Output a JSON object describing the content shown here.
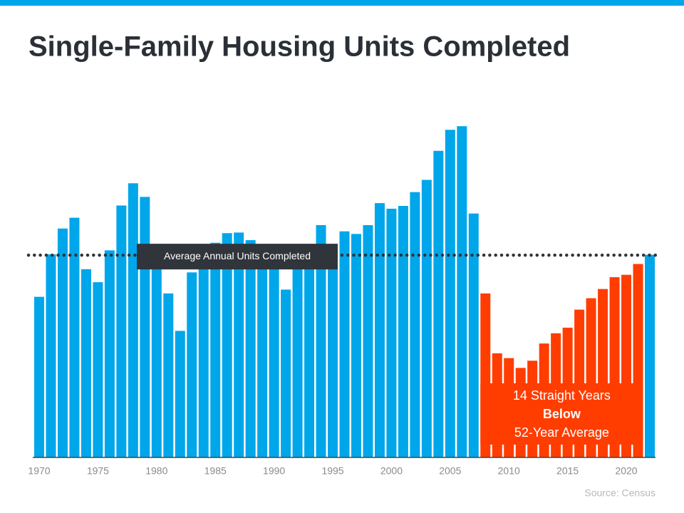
{
  "chart_data": {
    "type": "bar",
    "title": "Single-Family Housing Units Completed",
    "x": [
      1970,
      1971,
      1972,
      1973,
      1974,
      1975,
      1976,
      1977,
      1978,
      1979,
      1980,
      1981,
      1982,
      1983,
      1984,
      1985,
      1986,
      1987,
      1988,
      1989,
      1990,
      1991,
      1992,
      1993,
      1994,
      1995,
      1996,
      1997,
      1998,
      1999,
      2000,
      2001,
      2002,
      2003,
      2004,
      2005,
      2006,
      2007,
      2008,
      2009,
      2010,
      2011,
      2012,
      2013,
      2014,
      2015,
      2016,
      2017,
      2018,
      2019,
      2020,
      2021,
      2022
    ],
    "values": [
      802,
      1014,
      1143,
      1197,
      940,
      875,
      1034,
      1258,
      1369,
      1301,
      957,
      819,
      632,
      924,
      1025,
      1072,
      1120,
      1123,
      1085,
      1026,
      966,
      838,
      964,
      1039,
      1160,
      1066,
      1129,
      1116,
      1160,
      1270,
      1242,
      1256,
      1325,
      1386,
      1531,
      1636,
      1654,
      1218,
      819,
      520,
      496,
      447,
      483,
      569,
      620,
      648,
      738,
      795,
      841,
      900,
      912,
      966,
      1012
    ],
    "color": "#00a6ea",
    "highlight_color": "#ff3d00",
    "highlight_from": 2008,
    "highlight_to": 2021,
    "ylim": [
      0,
      1900
    ],
    "xticks": [
      1970,
      1975,
      1980,
      1985,
      1990,
      1995,
      2000,
      2005,
      2010,
      2015,
      2020
    ],
    "average": 1010,
    "average_label": "Average Annual Units Completed",
    "annotation": [
      "14 Straight Years",
      "Below",
      "52-Year Average"
    ],
    "source": "Source: Census"
  }
}
